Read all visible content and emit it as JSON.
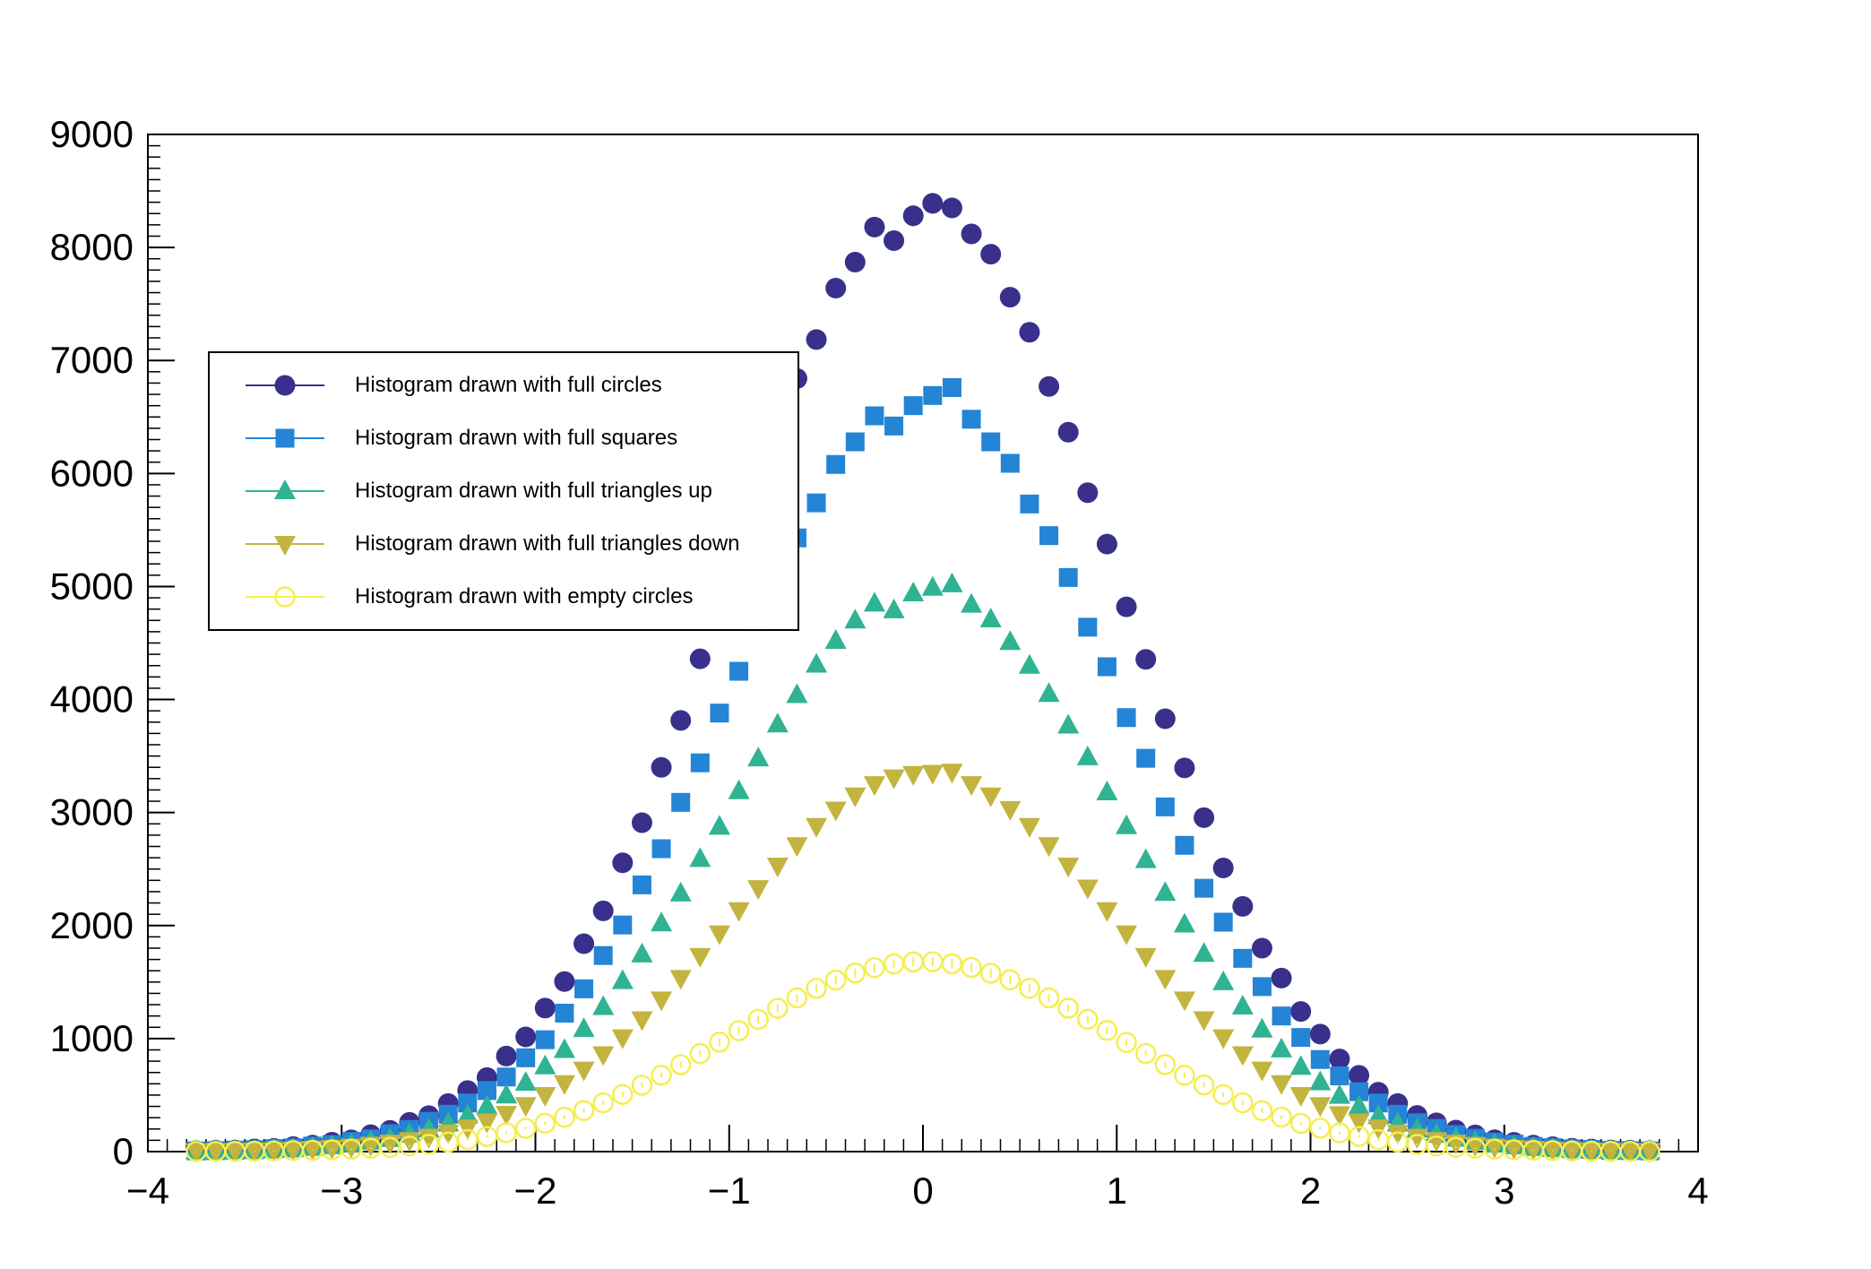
{
  "chart_data": {
    "type": "scatter",
    "title": "",
    "xlabel": "",
    "ylabel": "",
    "xlim": [
      -4,
      4
    ],
    "ylim": [
      0,
      9000
    ],
    "grid": false,
    "error_bars": "poisson",
    "x_tick_values": [
      -4,
      -3,
      -2,
      -1,
      0,
      1,
      2,
      3,
      4
    ],
    "x_tick_labels": [
      "−4",
      "−3",
      "−2",
      "−1",
      "0",
      "1",
      "2",
      "3",
      "4"
    ],
    "y_tick_values": [
      0,
      1000,
      2000,
      3000,
      4000,
      5000,
      6000,
      7000,
      8000,
      9000
    ],
    "y_tick_labels": [
      "0",
      "1000",
      "2000",
      "3000",
      "4000",
      "5000",
      "6000",
      "7000",
      "8000",
      "9000"
    ],
    "x_minor_step": 0.1,
    "y_minor_step": 100,
    "legend": {
      "position": "top-left",
      "border": true
    },
    "x": [
      -3.75,
      -3.65,
      -3.55,
      -3.45,
      -3.35,
      -3.25,
      -3.15,
      -3.05,
      -2.95,
      -2.85,
      -2.75,
      -2.65,
      -2.55,
      -2.45,
      -2.35,
      -2.25,
      -2.15,
      -2.05,
      -1.95,
      -1.85,
      -1.75,
      -1.65,
      -1.55,
      -1.45,
      -1.35,
      -1.25,
      -1.15,
      -1.05,
      -0.95,
      -0.85,
      -0.75,
      -0.65,
      -0.55,
      -0.45,
      -0.35,
      -0.25,
      -0.15,
      -0.05,
      0.05,
      0.15,
      0.25,
      0.35,
      0.45,
      0.55,
      0.65,
      0.75,
      0.85,
      0.95,
      1.05,
      1.15,
      1.25,
      1.35,
      1.45,
      1.55,
      1.65,
      1.75,
      1.85,
      1.95,
      2.05,
      2.15,
      2.25,
      2.35,
      2.45,
      2.55,
      2.65,
      2.75,
      2.85,
      2.95,
      3.05,
      3.15,
      3.25,
      3.35,
      3.45,
      3.55,
      3.65,
      3.75
    ],
    "series": [
      {
        "name": "Histogram drawn with full circles",
        "marker": "full-circle",
        "color": "#39308b",
        "values": [
          8,
          12,
          14,
          24,
          29,
          45,
          57,
          83,
          104,
          150,
          188,
          259,
          318,
          425,
          540,
          655,
          845,
          1015,
          1270,
          1505,
          1840,
          2130,
          2555,
          2910,
          3400,
          3815,
          4360,
          4810,
          5320,
          5895,
          6310,
          6840,
          7185,
          7640,
          7870,
          8180,
          8060,
          8280,
          8390,
          8350,
          8120,
          7940,
          7560,
          7250,
          6770,
          6365,
          5830,
          5375,
          4820,
          4355,
          3830,
          3395,
          2955,
          2510,
          2170,
          1800,
          1535,
          1240,
          1040,
          820,
          675,
          525,
          425,
          320,
          255,
          190,
          148,
          105,
          82,
          57,
          44,
          30,
          23,
          14,
          12,
          8
        ]
      },
      {
        "name": "Histogram drawn with full squares",
        "marker": "full-square",
        "color": "#2484d6",
        "values": [
          6,
          8,
          13,
          17,
          26,
          33,
          49,
          62,
          90,
          112,
          158,
          196,
          268,
          330,
          430,
          540,
          660,
          830,
          990,
          1225,
          1440,
          1735,
          2005,
          2360,
          2680,
          3090,
          3440,
          3880,
          4250,
          4690,
          5020,
          5430,
          5740,
          6080,
          6280,
          6510,
          6420,
          6600,
          6690,
          6760,
          6480,
          6280,
          6090,
          5730,
          5450,
          5080,
          4640,
          4290,
          3840,
          3480,
          3050,
          2710,
          2330,
          2030,
          1710,
          1460,
          1200,
          1010,
          815,
          670,
          530,
          430,
          330,
          255,
          205,
          150,
          118,
          84,
          66,
          46,
          35,
          24,
          19,
          11,
          9,
          6
        ]
      },
      {
        "name": "Histogram drawn with full triangles up",
        "marker": "triangle-up",
        "color": "#30b392",
        "values": [
          5,
          7,
          9,
          13,
          18,
          26,
          34,
          49,
          65,
          88,
          112,
          152,
          196,
          250,
          320,
          400,
          498,
          610,
          755,
          900,
          1085,
          1280,
          1510,
          1745,
          2020,
          2285,
          2590,
          2875,
          3190,
          3480,
          3780,
          4040,
          4310,
          4520,
          4700,
          4850,
          4790,
          4940,
          4990,
          5020,
          4840,
          4710,
          4510,
          4300,
          4050,
          3770,
          3490,
          3180,
          2880,
          2580,
          2290,
          2010,
          1750,
          1500,
          1285,
          1080,
          905,
          750,
          615,
          495,
          400,
          315,
          250,
          195,
          150,
          115,
          86,
          64,
          48,
          35,
          25,
          18,
          13,
          9,
          7,
          5
        ]
      },
      {
        "name": "Histogram drawn with full triangles down",
        "marker": "triangle-down",
        "color": "#c3b43f",
        "values": [
          3,
          5,
          6,
          9,
          12,
          18,
          24,
          32,
          43,
          59,
          77,
          100,
          130,
          168,
          212,
          266,
          333,
          410,
          500,
          605,
          725,
          860,
          1010,
          1170,
          1345,
          1535,
          1730,
          1930,
          2135,
          2330,
          2530,
          2710,
          2880,
          3025,
          3150,
          3250,
          3310,
          3340,
          3350,
          3360,
          3250,
          3150,
          3030,
          2880,
          2710,
          2530,
          2335,
          2135,
          1930,
          1730,
          1535,
          1345,
          1170,
          1010,
          860,
          725,
          605,
          500,
          410,
          330,
          265,
          212,
          167,
          130,
          100,
          77,
          58,
          43,
          32,
          24,
          17,
          12,
          9,
          6,
          5,
          3
        ]
      },
      {
        "name": "Histogram drawn with empty circles",
        "marker": "open-circle",
        "color": "#f5ee4f",
        "values": [
          2,
          2,
          3,
          4,
          6,
          9,
          12,
          16,
          22,
          29,
          38,
          50,
          65,
          84,
          106,
          134,
          167,
          206,
          251,
          304,
          363,
          431,
          506,
          588,
          676,
          769,
          867,
          968,
          1070,
          1171,
          1268,
          1360,
          1444,
          1518,
          1580,
          1628,
          1661,
          1678,
          1680,
          1662,
          1630,
          1578,
          1520,
          1445,
          1360,
          1270,
          1170,
          1072,
          966,
          868,
          770,
          675,
          590,
          505,
          432,
          362,
          305,
          250,
          207,
          166,
          135,
          105,
          85,
          64,
          50,
          38,
          29,
          22,
          16,
          12,
          9,
          6,
          4,
          3,
          2,
          2
        ]
      }
    ]
  }
}
